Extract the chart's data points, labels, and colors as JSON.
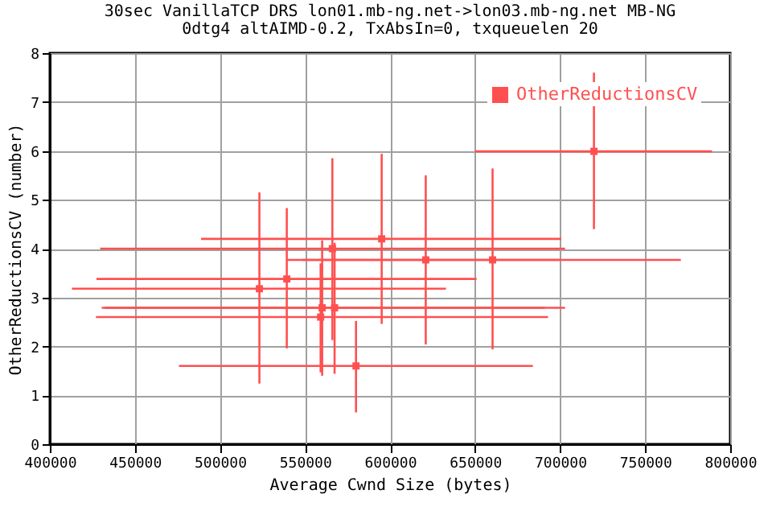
{
  "chart_data": {
    "type": "scatter",
    "title": "30sec VanillaTCP DRS lon01.mb-ng.net->lon03.mb-ng.net MB-NG",
    "subtitle": "0dtg4 altAIMD-0.2, TxAbsIn=0, txqueuelen 20",
    "xlabel": "Average Cwnd Size (bytes)",
    "ylabel": "OtherReductionsCV (number)",
    "xlim": [
      400000,
      800000
    ],
    "xticks": [
      400000,
      450000,
      500000,
      550000,
      600000,
      650000,
      700000,
      750000,
      800000
    ],
    "ylim": [
      0,
      8
    ],
    "yticks": [
      0,
      1,
      2,
      3,
      4,
      5,
      6,
      7,
      8
    ],
    "grid": true,
    "legend": "top right",
    "marker": "square",
    "series": [
      {
        "name": "OtherReductionsCV",
        "color": "#ff5050",
        "x": [
          595100,
          566100,
          660300,
          621000,
          539300,
          523200,
          560100,
          567400,
          559200,
          580000,
          719900
        ],
        "values": [
          4.2,
          4.0,
          3.77,
          3.77,
          3.38,
          3.18,
          2.79,
          2.79,
          2.6,
          1.6,
          5.99
        ],
        "errors": [
          [
            2.46,
            5.94
          ],
          [
            2.13,
            5.85
          ],
          [
            1.94,
            5.64
          ],
          [
            2.04,
            5.5
          ],
          [
            1.96,
            4.83
          ],
          [
            1.24,
            5.15
          ],
          [
            1.4,
            4.17
          ],
          [
            1.44,
            4.12
          ],
          [
            1.47,
            3.7
          ],
          [
            0.65,
            2.52
          ],
          [
            4.4,
            7.6
          ]
        ],
        "xerrors": [
          [
            488900,
            700700
          ],
          [
            429600,
            702900
          ],
          [
            548700,
            771000
          ],
          [
            539300,
            700700
          ],
          [
            427400,
            650900
          ],
          [
            413000,
            632900
          ],
          [
            430500,
            690900
          ],
          [
            432200,
            702900
          ],
          [
            427100,
            692900
          ],
          [
            475900,
            684000
          ],
          [
            650000,
            789300
          ]
        ]
      }
    ]
  }
}
